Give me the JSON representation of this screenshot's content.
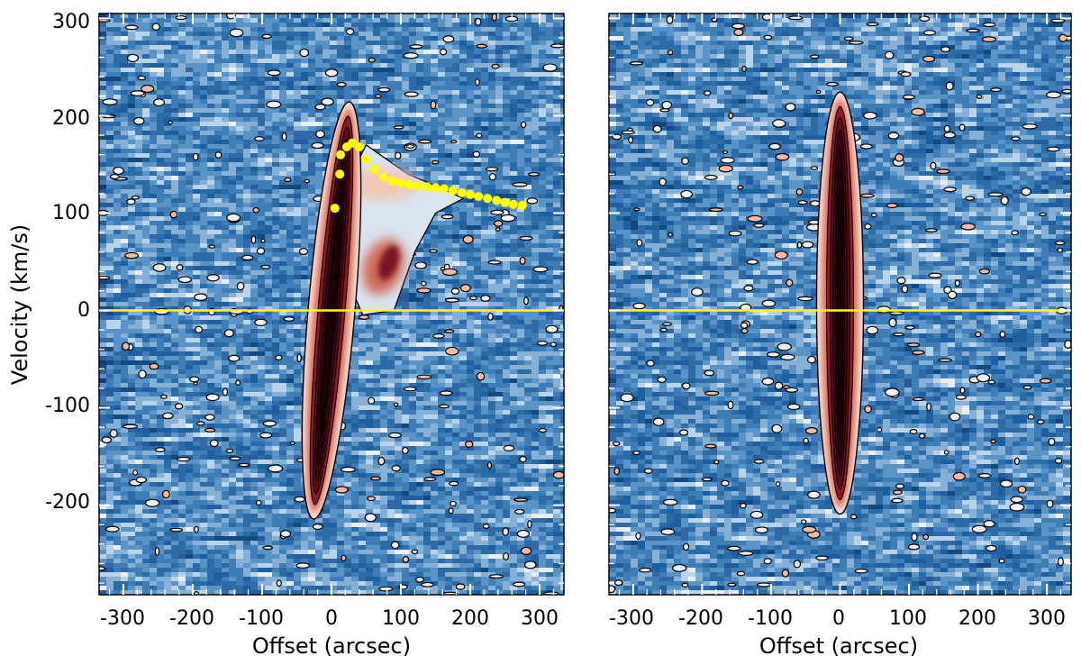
{
  "chart_data": [
    {
      "type": "heatmap",
      "panel": "left",
      "xlabel": "Offset (arcsec)",
      "ylabel": "Velocity (km/s)",
      "xlim": [
        -335,
        335
      ],
      "ylim": [
        -292,
        305
      ],
      "xticks": [
        -300,
        -200,
        -100,
        0,
        100,
        200,
        300
      ],
      "yticks": [
        300,
        200,
        100,
        0,
        -100,
        -200
      ],
      "grid": false,
      "colormap": [
        "#0b3d78",
        "#1f5fa0",
        "#4f8cc2",
        "#a9c8e2",
        "#ffffff",
        "#f6c1b1",
        "#d4735f",
        "#8a1a28",
        "#3a0009"
      ],
      "contour_color": "#000000",
      "main_emission": {
        "offset_center_at_zero_velocity": 0,
        "tilt_offset_per_km_s": 0.12,
        "velocity_range": [
          -205,
          205
        ]
      },
      "extended_emission": {
        "offset_range": [
          30,
          120
        ],
        "velocity_range": [
          0,
          170
        ],
        "peak": {
          "offset": 75,
          "velocity": 45
        }
      },
      "reference_line": {
        "velocity": 0,
        "color": "#ffff00"
      },
      "overlay_points": {
        "color": "#ffff00",
        "x": [
          5,
          12,
          13,
          22,
          30,
          40,
          50,
          62,
          75,
          88,
          100,
          112,
          125,
          138,
          150,
          162,
          175,
          188,
          200,
          212,
          225,
          238,
          250,
          262,
          275
        ],
        "y": [
          105,
          140,
          160,
          168,
          172,
          168,
          155,
          145,
          137,
          133,
          131,
          129,
          128,
          127,
          126,
          125,
          123,
          121,
          119,
          117,
          115,
          113,
          111,
          109,
          108
        ]
      }
    },
    {
      "type": "heatmap",
      "panel": "right",
      "xlabel": "Offset (arcsec)",
      "ylabel": "",
      "xlim": [
        -335,
        335
      ],
      "ylim": [
        -292,
        305
      ],
      "xticks": [
        -300,
        -200,
        -100,
        0,
        100,
        200,
        300
      ],
      "yticks": [],
      "grid": false,
      "main_emission": {
        "offset_center_at_zero_velocity": 0,
        "tilt_offset_per_km_s": 0.0,
        "velocity_range": [
          -200,
          215
        ]
      },
      "reference_line": {
        "velocity": 0,
        "color": "#ffff00"
      }
    }
  ]
}
